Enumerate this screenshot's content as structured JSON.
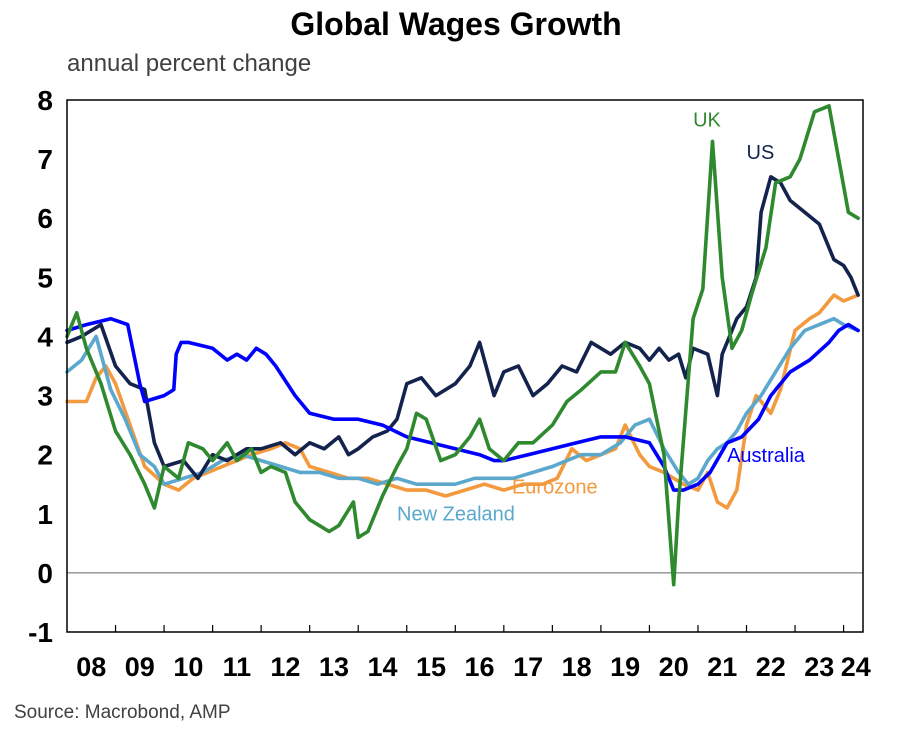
{
  "title": "Global Wages Growth",
  "subtitle": "annual percent change",
  "source": "Source: Macrobond, AMP",
  "chart_data": {
    "type": "line",
    "title": "Global Wages Growth",
    "ylabel": "annual percent change",
    "xlabel": "",
    "ylim": [
      -1,
      8
    ],
    "xlim": [
      2008.0,
      2024.4
    ],
    "yticks": [
      -1,
      0,
      1,
      2,
      3,
      4,
      5,
      6,
      7,
      8
    ],
    "xtick_labels": [
      "08",
      "09",
      "10",
      "11",
      "12",
      "13",
      "14",
      "15",
      "16",
      "17",
      "18",
      "19",
      "20",
      "21",
      "22",
      "23",
      "24"
    ],
    "grid": false,
    "zero_line": true,
    "series": [
      {
        "name": "Australia",
        "color": "#0000ff",
        "x": [
          2008.0,
          2008.4,
          2008.9,
          2009.25,
          2009.4,
          2009.5,
          2009.6,
          2010.0,
          2010.2,
          2010.25,
          2010.35,
          2010.5,
          2011.0,
          2011.3,
          2011.5,
          2011.7,
          2011.9,
          2012.1,
          2012.3,
          2012.7,
          2013.0,
          2013.5,
          2014.0,
          2014.5,
          2015.0,
          2015.5,
          2016.0,
          2016.5,
          2016.8,
          2017.0,
          2017.5,
          2018.0,
          2018.5,
          2019.0,
          2019.5,
          2020.0,
          2020.3,
          2020.5,
          2020.7,
          2021.0,
          2021.25,
          2021.6,
          2021.9,
          2022.25,
          2022.5,
          2022.9,
          2023.3,
          2023.7,
          2023.9,
          2024.1,
          2024.3
        ],
        "y": [
          4.1,
          4.2,
          4.3,
          4.2,
          3.6,
          3.2,
          2.9,
          3.0,
          3.1,
          3.7,
          3.9,
          3.9,
          3.8,
          3.6,
          3.7,
          3.6,
          3.8,
          3.7,
          3.5,
          3.0,
          2.7,
          2.6,
          2.6,
          2.5,
          2.3,
          2.2,
          2.1,
          2.0,
          1.9,
          1.9,
          2.0,
          2.1,
          2.2,
          2.3,
          2.3,
          2.2,
          1.8,
          1.4,
          1.4,
          1.5,
          1.7,
          2.2,
          2.3,
          2.6,
          3.0,
          3.4,
          3.6,
          3.9,
          4.1,
          4.2,
          4.1
        ]
      },
      {
        "name": "US",
        "color": "#14234d",
        "x": [
          2008.0,
          2008.3,
          2008.7,
          2009.0,
          2009.3,
          2009.6,
          2009.8,
          2010.0,
          2010.4,
          2010.7,
          2011.0,
          2011.3,
          2011.7,
          2012.0,
          2012.4,
          2012.7,
          2013.0,
          2013.3,
          2013.6,
          2013.8,
          2014.0,
          2014.3,
          2014.6,
          2014.8,
          2015.0,
          2015.3,
          2015.6,
          2016.0,
          2016.3,
          2016.5,
          2016.8,
          2017.0,
          2017.3,
          2017.6,
          2017.9,
          2018.2,
          2018.5,
          2018.8,
          2019.2,
          2019.5,
          2019.8,
          2020.0,
          2020.2,
          2020.4,
          2020.6,
          2020.75,
          2020.9,
          2021.2,
          2021.4,
          2021.5,
          2021.8,
          2022.0,
          2022.2,
          2022.3,
          2022.5,
          2022.7,
          2022.9,
          2023.2,
          2023.5,
          2023.8,
          2024.0,
          2024.15,
          2024.3
        ],
        "y": [
          3.9,
          4.0,
          4.2,
          3.5,
          3.2,
          3.1,
          2.2,
          1.8,
          1.9,
          1.6,
          2.0,
          1.9,
          2.1,
          2.1,
          2.2,
          2.0,
          2.2,
          2.1,
          2.3,
          2.0,
          2.1,
          2.3,
          2.4,
          2.6,
          3.2,
          3.3,
          3.0,
          3.2,
          3.5,
          3.9,
          3.0,
          3.4,
          3.5,
          3.0,
          3.2,
          3.5,
          3.4,
          3.9,
          3.7,
          3.9,
          3.8,
          3.6,
          3.8,
          3.6,
          3.7,
          3.3,
          3.8,
          3.7,
          3.0,
          3.7,
          4.3,
          4.5,
          5.0,
          6.1,
          6.7,
          6.6,
          6.3,
          6.1,
          5.9,
          5.3,
          5.2,
          5.0,
          4.7
        ]
      },
      {
        "name": "UK",
        "color": "#2f8a2f",
        "x": [
          2008.0,
          2008.2,
          2008.4,
          2008.7,
          2009.0,
          2009.3,
          2009.6,
          2009.8,
          2010.0,
          2010.3,
          2010.5,
          2010.8,
          2011.0,
          2011.3,
          2011.5,
          2011.8,
          2012.0,
          2012.2,
          2012.5,
          2012.7,
          2013.0,
          2013.2,
          2013.4,
          2013.6,
          2013.9,
          2014.0,
          2014.2,
          2014.5,
          2014.8,
          2015.0,
          2015.2,
          2015.4,
          2015.7,
          2016.0,
          2016.3,
          2016.5,
          2016.7,
          2017.0,
          2017.3,
          2017.6,
          2018.0,
          2018.3,
          2018.6,
          2019.0,
          2019.3,
          2019.5,
          2019.8,
          2020.0,
          2020.3,
          2020.5,
          2020.6,
          2020.9,
          2021.1,
          2021.3,
          2021.5,
          2021.7,
          2021.9,
          2022.1,
          2022.4,
          2022.6,
          2022.9,
          2023.1,
          2023.4,
          2023.7,
          2023.9,
          2024.1,
          2024.3
        ],
        "y": [
          4.0,
          4.4,
          3.8,
          3.2,
          2.4,
          2.0,
          1.5,
          1.1,
          1.8,
          1.6,
          2.2,
          2.1,
          1.9,
          2.2,
          1.9,
          2.1,
          1.7,
          1.8,
          1.7,
          1.2,
          0.9,
          0.8,
          0.7,
          0.8,
          1.2,
          0.6,
          0.7,
          1.3,
          1.8,
          2.1,
          2.7,
          2.6,
          1.9,
          2.0,
          2.3,
          2.6,
          2.1,
          1.9,
          2.2,
          2.2,
          2.5,
          2.9,
          3.1,
          3.4,
          3.4,
          3.9,
          3.5,
          3.2,
          2.0,
          -0.2,
          1.2,
          4.3,
          4.8,
          7.3,
          5.0,
          3.8,
          4.1,
          4.7,
          5.5,
          6.6,
          6.7,
          7.0,
          7.8,
          7.9,
          7.0,
          6.1,
          6.0
        ]
      },
      {
        "name": "Eurozone",
        "color": "#f39a3f",
        "x": [
          2008.0,
          2008.4,
          2008.6,
          2008.8,
          2009.0,
          2009.3,
          2009.6,
          2010.0,
          2010.3,
          2010.6,
          2010.9,
          2011.2,
          2011.5,
          2011.8,
          2012.2,
          2012.5,
          2012.8,
          2013.0,
          2013.4,
          2013.8,
          2014.2,
          2014.6,
          2015.0,
          2015.4,
          2015.8,
          2016.2,
          2016.6,
          2017.0,
          2017.4,
          2017.8,
          2018.1,
          2018.4,
          2018.7,
          2019.0,
          2019.3,
          2019.5,
          2019.8,
          2020.0,
          2020.3,
          2020.5,
          2020.7,
          2021.0,
          2021.2,
          2021.4,
          2021.6,
          2021.8,
          2022.0,
          2022.2,
          2022.5,
          2022.7,
          2023.0,
          2023.3,
          2023.5,
          2023.8,
          2024.0,
          2024.3
        ],
        "y": [
          2.9,
          2.9,
          3.3,
          3.5,
          3.2,
          2.5,
          1.8,
          1.5,
          1.4,
          1.6,
          1.7,
          1.8,
          1.9,
          2.0,
          2.1,
          2.2,
          2.1,
          1.8,
          1.7,
          1.6,
          1.6,
          1.5,
          1.4,
          1.4,
          1.3,
          1.4,
          1.5,
          1.4,
          1.5,
          1.5,
          1.6,
          2.1,
          1.9,
          2.0,
          2.1,
          2.5,
          2.0,
          1.8,
          1.7,
          1.6,
          1.5,
          1.4,
          1.7,
          1.2,
          1.1,
          1.4,
          2.5,
          3.0,
          2.7,
          3.1,
          4.1,
          4.3,
          4.4,
          4.7,
          4.6,
          4.7
        ]
      },
      {
        "name": "New Zealand",
        "color": "#5ba8cc",
        "x": [
          2008.0,
          2008.3,
          2008.6,
          2008.9,
          2009.2,
          2009.5,
          2009.8,
          2010.0,
          2010.4,
          2010.8,
          2011.2,
          2011.6,
          2012.0,
          2012.4,
          2012.8,
          2013.2,
          2013.6,
          2014.0,
          2014.4,
          2014.8,
          2015.2,
          2015.6,
          2016.0,
          2016.4,
          2016.8,
          2017.2,
          2017.6,
          2018.0,
          2018.3,
          2018.6,
          2019.0,
          2019.4,
          2019.7,
          2020.0,
          2020.3,
          2020.6,
          2020.8,
          2021.0,
          2021.2,
          2021.4,
          2021.6,
          2021.8,
          2022.0,
          2022.3,
          2022.6,
          2022.9,
          2023.2,
          2023.5,
          2023.8,
          2024.0,
          2024.3
        ],
        "y": [
          3.4,
          3.6,
          4.0,
          3.1,
          2.6,
          2.0,
          1.8,
          1.5,
          1.6,
          1.7,
          1.9,
          2.0,
          1.9,
          1.8,
          1.7,
          1.7,
          1.6,
          1.6,
          1.5,
          1.6,
          1.5,
          1.5,
          1.5,
          1.6,
          1.6,
          1.6,
          1.7,
          1.8,
          1.9,
          2.0,
          2.0,
          2.2,
          2.5,
          2.6,
          2.1,
          1.7,
          1.5,
          1.6,
          1.9,
          2.1,
          2.2,
          2.4,
          2.7,
          3.0,
          3.4,
          3.8,
          4.1,
          4.2,
          4.3,
          4.2,
          4.1
        ]
      }
    ],
    "annotations": [
      {
        "text": "UK",
        "series": "UK"
      },
      {
        "text": "US",
        "series": "US"
      },
      {
        "text": "Australia",
        "series": "Australia"
      },
      {
        "text": "Eurozone",
        "series": "Eurozone"
      },
      {
        "text": "New Zealand",
        "series": "New Zealand"
      }
    ]
  }
}
